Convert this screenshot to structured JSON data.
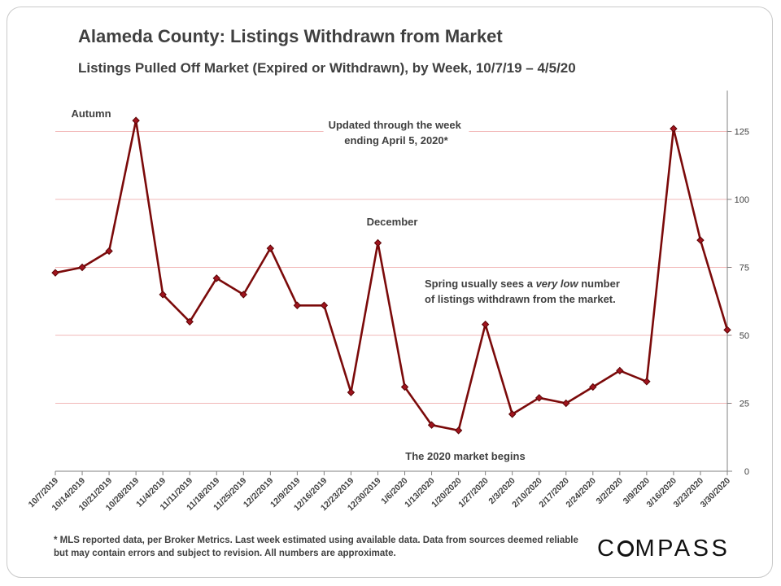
{
  "header": {
    "title": "Alameda County: Listings Withdrawn from Market",
    "subtitle": "Listings Pulled Off Market (Expired or Withdrawn), by Week, 10/7/19 – 4/5/20"
  },
  "chart_data": {
    "type": "line",
    "title": "Alameda County: Listings Withdrawn from Market",
    "subtitle": "Listings Pulled Off Market (Expired or Withdrawn), by Week, 10/7/19 – 4/5/20",
    "xlabel": "",
    "ylabel": "",
    "ylim": [
      0,
      140
    ],
    "yticks": [
      0,
      25,
      50,
      75,
      100,
      125
    ],
    "y_axis_side": "right",
    "grid": "horizontal",
    "line_color": "#7b0a0a",
    "grid_color": "#f2b8b8",
    "categories": [
      "10/7/2019",
      "10/14/2019",
      "10/21/2019",
      "10/28/2019",
      "11/4/2019",
      "11/11/2019",
      "11/18/2019",
      "11/25/2019",
      "12/2/2019",
      "12/9/2019",
      "12/16/2019",
      "12/23/2019",
      "12/30/2019",
      "1/6/2020",
      "1/13/2020",
      "1/20/2020",
      "1/27/2020",
      "2/3/2020",
      "2/10/2020",
      "2/17/2020",
      "2/24/2020",
      "3/2/2020",
      "3/9/2020",
      "3/16/2020",
      "3/23/2020",
      "3/30/2020"
    ],
    "values": [
      73,
      75,
      81,
      129,
      65,
      55,
      71,
      65,
      82,
      61,
      61,
      29,
      84,
      31,
      17,
      15,
      54,
      21,
      27,
      25,
      31,
      37,
      33,
      126,
      85,
      52
    ],
    "annotations": [
      {
        "text": "Autumn",
        "lines": [
          "Autumn"
        ]
      },
      {
        "text": "Updated through the week ending April 5, 2020*",
        "lines": [
          "Updated through the week",
          "ending April 5, 2020*"
        ]
      },
      {
        "text": "December",
        "lines": [
          "December"
        ]
      },
      {
        "text": "Spring usually sees a very low number of listings withdrawn from the market.",
        "lines": [
          "Spring usually sees a very low number",
          "of listings withdrawn from the market."
        ]
      },
      {
        "text": "The 2020 market begins",
        "lines": [
          "The 2020 market begins"
        ]
      }
    ]
  },
  "footer": {
    "footnote": "* MLS reported data, per Broker Metrics. Last week estimated using available data. Data from sources deemed reliable but may contain errors and subject to revision. All numbers are approximate.",
    "logo_left": "C",
    "logo_right": "MPASS"
  }
}
